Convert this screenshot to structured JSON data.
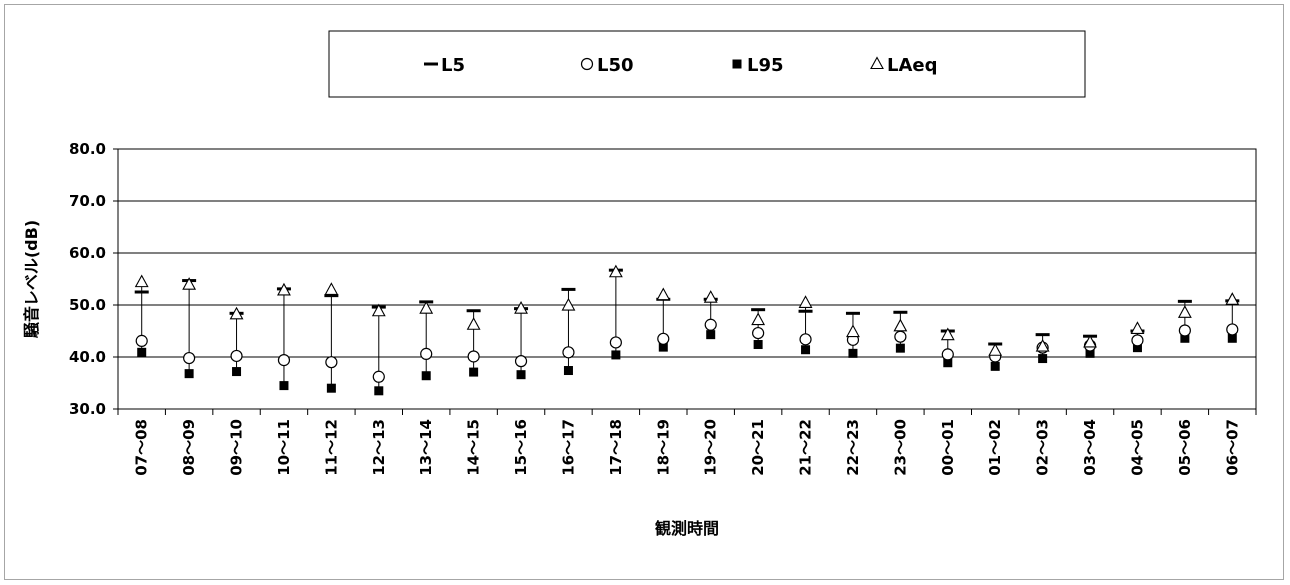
{
  "chart_data": {
    "type": "scatter",
    "xlabel": "観測時間",
    "ylabel": "騒音レベル(dB)",
    "ylim": [
      30,
      80
    ],
    "yticks": [
      "30.0",
      "40.0",
      "50.0",
      "60.0",
      "70.0",
      "80.0"
    ],
    "grid": true,
    "legend_position": "top",
    "categories": [
      "07～08",
      "08～09",
      "09～10",
      "10～11",
      "11～12",
      "12～13",
      "13～14",
      "14～15",
      "15～16",
      "16～17",
      "17～18",
      "18～19",
      "19～20",
      "20～21",
      "21～22",
      "22～23",
      "23～00",
      "00～01",
      "01～02",
      "02～03",
      "03～04",
      "04～05",
      "05～06",
      "06～07"
    ],
    "series": [
      {
        "name": "L5",
        "marker": "dash",
        "values": [
          52.5,
          54.7,
          48.4,
          53.1,
          51.8,
          49.6,
          50.6,
          48.9,
          49.3,
          53.0,
          56.7,
          51.1,
          51.1,
          49.1,
          48.8,
          48.4,
          48.6,
          45.0,
          42.5,
          44.3,
          44.0,
          45.0,
          50.7,
          50.8
        ]
      },
      {
        "name": "L50",
        "marker": "circle-open",
        "values": [
          43.1,
          39.8,
          40.2,
          39.4,
          39.0,
          36.2,
          40.6,
          40.1,
          39.2,
          40.9,
          42.8,
          43.5,
          46.2,
          44.6,
          43.4,
          43.3,
          43.9,
          40.5,
          40.1,
          41.8,
          42.2,
          43.2,
          45.1,
          45.3
        ]
      },
      {
        "name": "L95",
        "marker": "square-filled",
        "values": [
          40.9,
          36.8,
          37.2,
          34.5,
          34.0,
          33.5,
          36.4,
          37.1,
          36.6,
          37.4,
          40.4,
          41.9,
          44.3,
          42.4,
          41.4,
          40.7,
          41.7,
          38.9,
          38.2,
          39.7,
          40.7,
          41.8,
          43.6,
          43.6
        ]
      },
      {
        "name": "LAeq",
        "marker": "triangle-open",
        "values": [
          54.4,
          53.9,
          48.2,
          52.8,
          52.9,
          48.8,
          49.3,
          46.2,
          49.3,
          49.9,
          56.3,
          51.9,
          51.4,
          47.1,
          50.4,
          44.8,
          45.9,
          44.2,
          41.2,
          42.0,
          42.8,
          45.4,
          48.5,
          51.0
        ]
      }
    ]
  }
}
